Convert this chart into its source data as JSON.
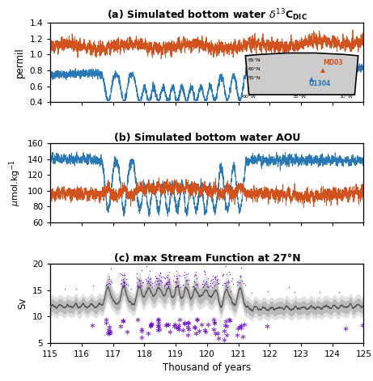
{
  "title_a": "(a) Simulated bottom water $\\delta^{13}$C$_{\\mathrm{DIC}}$",
  "title_b": "(b) Simulated bottom water AOU",
  "title_c": "(c) max Stream Function at 27°N",
  "xlabel": "Thousand of years",
  "ylabel_a": "permil",
  "ylabel_b": "μmol.kg⁻¹",
  "ylabel_c": "Sv",
  "xmin": 115,
  "xmax": 125,
  "xticks": [
    115,
    116,
    117,
    118,
    119,
    120,
    121,
    122,
    123,
    124,
    125
  ],
  "ylim_a": [
    0.4,
    1.4
  ],
  "yticks_a": [
    0.4,
    0.6,
    0.8,
    1.0,
    1.2,
    1.4
  ],
  "ylim_b": [
    60,
    160
  ],
  "yticks_b": [
    60,
    80,
    100,
    120,
    140,
    160
  ],
  "ylim_c": [
    5,
    20
  ],
  "yticks_c": [
    5,
    10,
    15,
    20
  ],
  "color_orange": "#D2521E",
  "color_blue": "#2878B5",
  "color_gray_dark": "#555555",
  "color_gray_light": "#CCCCCC",
  "color_purple": "#6600CC"
}
